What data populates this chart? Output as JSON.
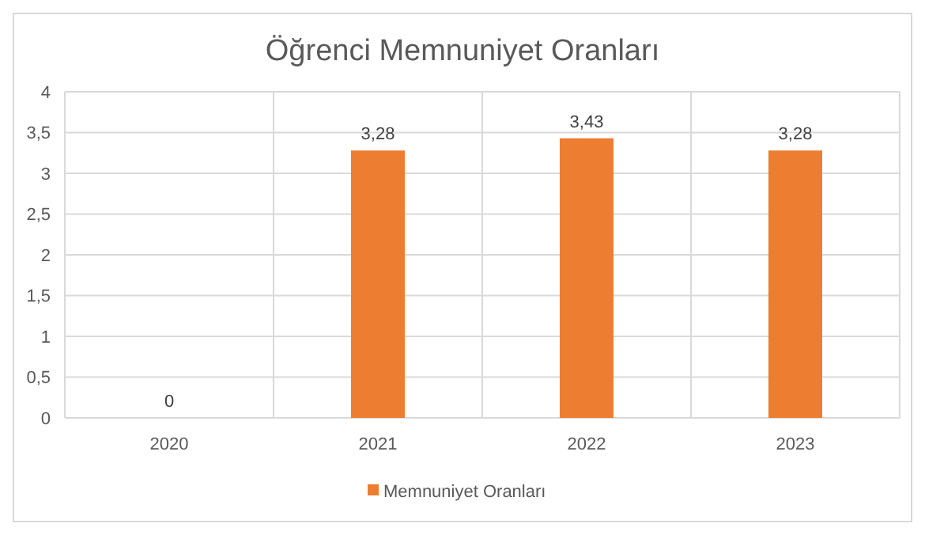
{
  "chart_data": {
    "type": "bar",
    "title": "Öğrenci Memnuniyet Oranları",
    "categories": [
      "2020",
      "2021",
      "2022",
      "2023"
    ],
    "series": [
      {
        "name": "Memnuniyet Oranları",
        "color": "#ed7d31",
        "values": [
          0,
          3.28,
          3.43,
          3.28
        ],
        "value_labels": [
          "0",
          "3,28",
          "3,43",
          "3,28"
        ]
      }
    ],
    "ylim": [
      0,
      4
    ],
    "yticks": [
      0,
      {
        "value": 0.5,
        "label": "0,5"
      },
      1,
      {
        "value": 1.5,
        "label": "1,5"
      },
      2,
      {
        "value": 2.5,
        "label": "2,5"
      },
      3,
      {
        "value": 3.5,
        "label": "3,5"
      },
      4
    ],
    "grid": true,
    "legend": "bottom"
  }
}
